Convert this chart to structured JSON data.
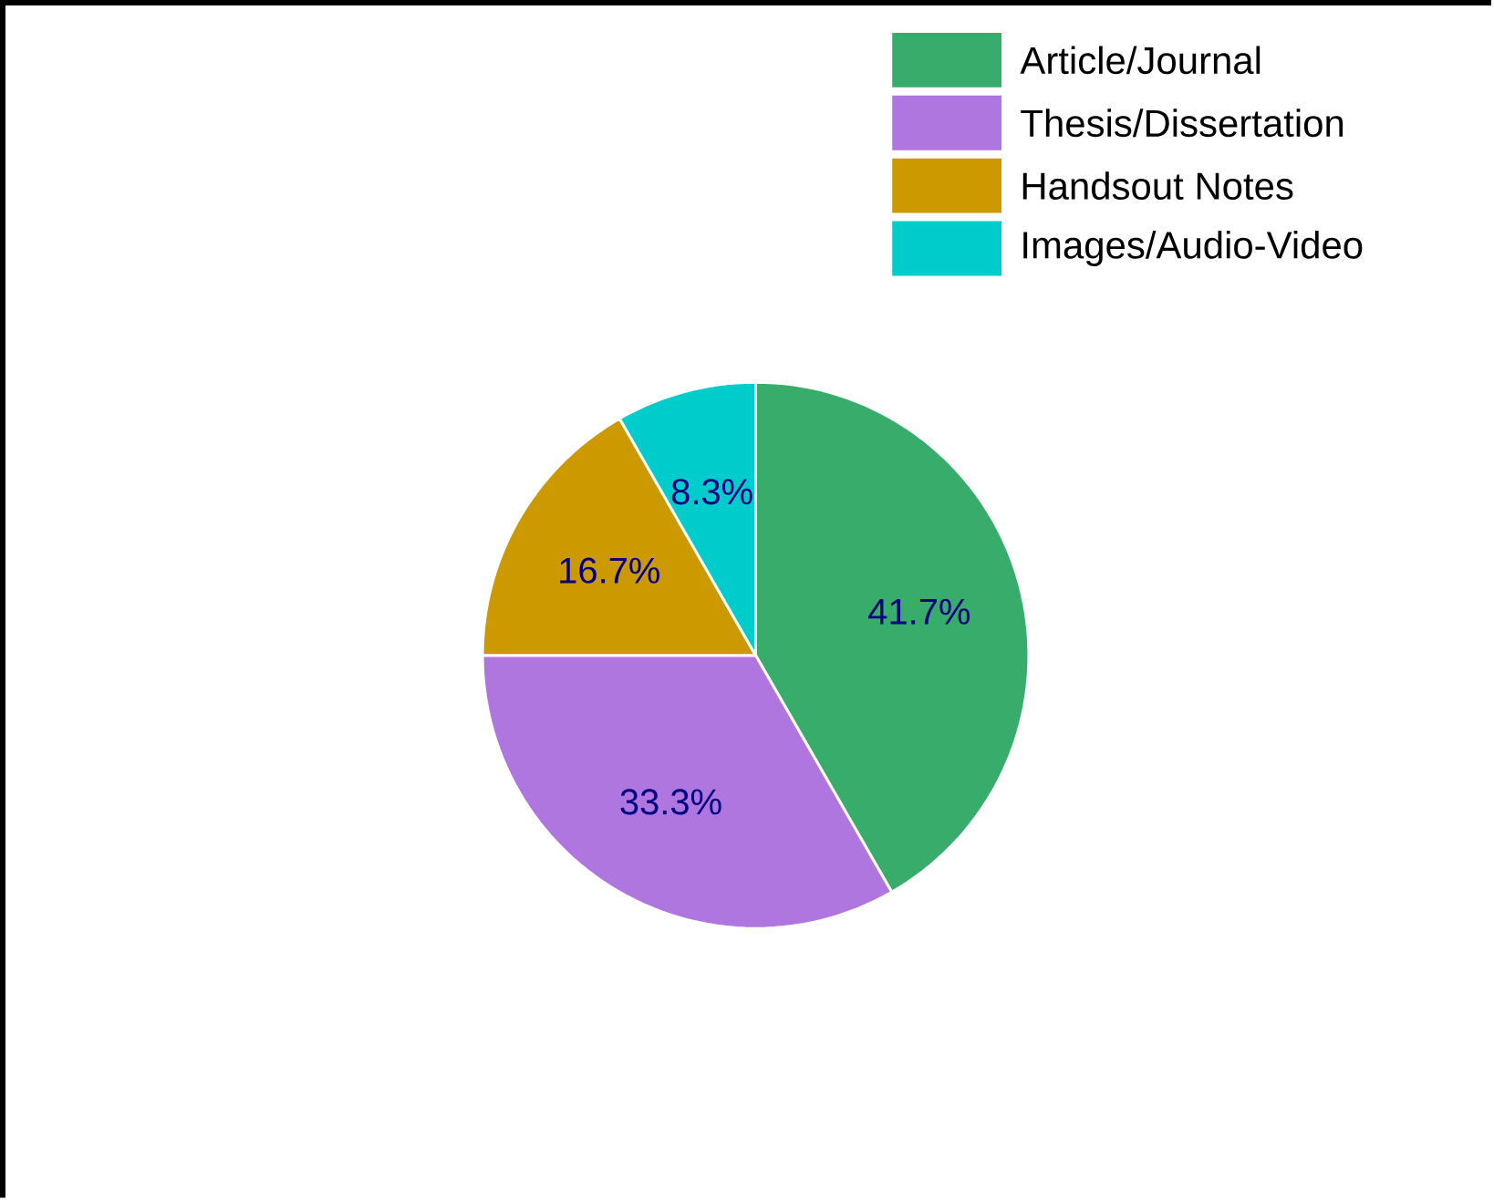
{
  "chart_data": {
    "type": "pie",
    "categories": [
      "Article/Journal",
      "Thesis/Dissertation",
      "Handsout Notes",
      "Images/Audio-Video"
    ],
    "values": [
      41.7,
      33.3,
      16.7,
      8.3
    ],
    "colors": [
      "#38ad6b",
      "#b076e0",
      "#cc9900",
      "#00cccc"
    ],
    "value_labels": [
      "41.7%",
      "33.3%",
      "16.7%",
      "8.3%"
    ],
    "legend": "top right"
  }
}
